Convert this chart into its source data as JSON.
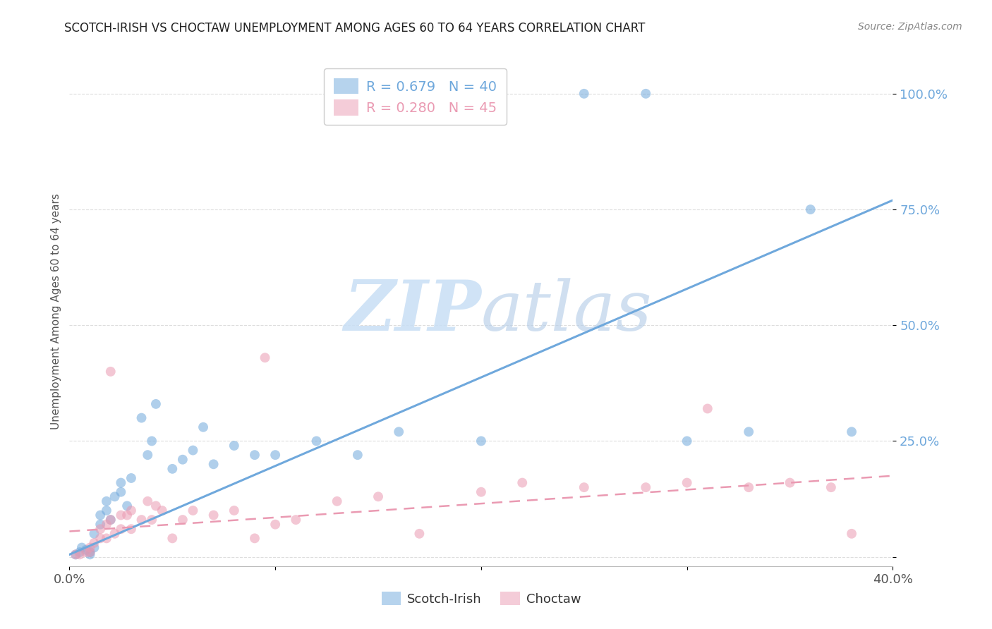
{
  "title": "SCOTCH-IRISH VS CHOCTAW UNEMPLOYMENT AMONG AGES 60 TO 64 YEARS CORRELATION CHART",
  "source": "Source: ZipAtlas.com",
  "ylabel": "Unemployment Among Ages 60 to 64 years",
  "xlim": [
    0.0,
    0.4
  ],
  "ylim": [
    -0.02,
    1.08
  ],
  "yticks": [
    0.0,
    0.25,
    0.5,
    0.75,
    1.0
  ],
  "ytick_labels": [
    "",
    "25.0%",
    "50.0%",
    "75.0%",
    "100.0%"
  ],
  "scotch_irish_R": 0.679,
  "scotch_irish_N": 40,
  "choctaw_R": 0.28,
  "choctaw_N": 45,
  "scotch_irish_color": "#6fa8dc",
  "choctaw_color": "#ea9ab2",
  "scotch_irish_scatter": [
    [
      0.003,
      0.005
    ],
    [
      0.005,
      0.01
    ],
    [
      0.006,
      0.02
    ],
    [
      0.008,
      0.015
    ],
    [
      0.01,
      0.005
    ],
    [
      0.01,
      0.01
    ],
    [
      0.012,
      0.02
    ],
    [
      0.012,
      0.05
    ],
    [
      0.015,
      0.07
    ],
    [
      0.015,
      0.09
    ],
    [
      0.018,
      0.1
    ],
    [
      0.018,
      0.12
    ],
    [
      0.02,
      0.08
    ],
    [
      0.022,
      0.13
    ],
    [
      0.025,
      0.14
    ],
    [
      0.025,
      0.16
    ],
    [
      0.028,
      0.11
    ],
    [
      0.03,
      0.17
    ],
    [
      0.035,
      0.3
    ],
    [
      0.038,
      0.22
    ],
    [
      0.04,
      0.25
    ],
    [
      0.042,
      0.33
    ],
    [
      0.05,
      0.19
    ],
    [
      0.055,
      0.21
    ],
    [
      0.06,
      0.23
    ],
    [
      0.065,
      0.28
    ],
    [
      0.07,
      0.2
    ],
    [
      0.08,
      0.24
    ],
    [
      0.09,
      0.22
    ],
    [
      0.1,
      0.22
    ],
    [
      0.12,
      0.25
    ],
    [
      0.14,
      0.22
    ],
    [
      0.16,
      0.27
    ],
    [
      0.2,
      0.25
    ],
    [
      0.25,
      1.0
    ],
    [
      0.28,
      1.0
    ],
    [
      0.3,
      0.25
    ],
    [
      0.33,
      0.27
    ],
    [
      0.36,
      0.75
    ],
    [
      0.38,
      0.27
    ]
  ],
  "choctaw_scatter": [
    [
      0.003,
      0.005
    ],
    [
      0.005,
      0.005
    ],
    [
      0.008,
      0.01
    ],
    [
      0.01,
      0.01
    ],
    [
      0.01,
      0.02
    ],
    [
      0.012,
      0.03
    ],
    [
      0.015,
      0.04
    ],
    [
      0.015,
      0.06
    ],
    [
      0.018,
      0.04
    ],
    [
      0.018,
      0.07
    ],
    [
      0.02,
      0.08
    ],
    [
      0.02,
      0.4
    ],
    [
      0.022,
      0.05
    ],
    [
      0.025,
      0.06
    ],
    [
      0.025,
      0.09
    ],
    [
      0.028,
      0.09
    ],
    [
      0.03,
      0.06
    ],
    [
      0.03,
      0.1
    ],
    [
      0.035,
      0.08
    ],
    [
      0.038,
      0.12
    ],
    [
      0.04,
      0.08
    ],
    [
      0.042,
      0.11
    ],
    [
      0.045,
      0.1
    ],
    [
      0.05,
      0.04
    ],
    [
      0.055,
      0.08
    ],
    [
      0.06,
      0.1
    ],
    [
      0.07,
      0.09
    ],
    [
      0.08,
      0.1
    ],
    [
      0.09,
      0.04
    ],
    [
      0.095,
      0.43
    ],
    [
      0.1,
      0.07
    ],
    [
      0.11,
      0.08
    ],
    [
      0.13,
      0.12
    ],
    [
      0.15,
      0.13
    ],
    [
      0.17,
      0.05
    ],
    [
      0.2,
      0.14
    ],
    [
      0.22,
      0.16
    ],
    [
      0.25,
      0.15
    ],
    [
      0.28,
      0.15
    ],
    [
      0.3,
      0.16
    ],
    [
      0.31,
      0.32
    ],
    [
      0.33,
      0.15
    ],
    [
      0.35,
      0.16
    ],
    [
      0.37,
      0.15
    ],
    [
      0.38,
      0.05
    ]
  ],
  "scotch_irish_trend_x": [
    0.0,
    0.4
  ],
  "scotch_irish_trend_y": [
    0.005,
    0.77
  ],
  "choctaw_trend_x": [
    0.0,
    0.4
  ],
  "choctaw_trend_y": [
    0.055,
    0.175
  ],
  "watermark_zip": "ZIP",
  "watermark_atlas": "atlas",
  "background_color": "#ffffff",
  "grid_color": "#dddddd",
  "ytick_color": "#6fa8dc",
  "title_color": "#222222",
  "source_color": "#888888",
  "ylabel_color": "#555555"
}
